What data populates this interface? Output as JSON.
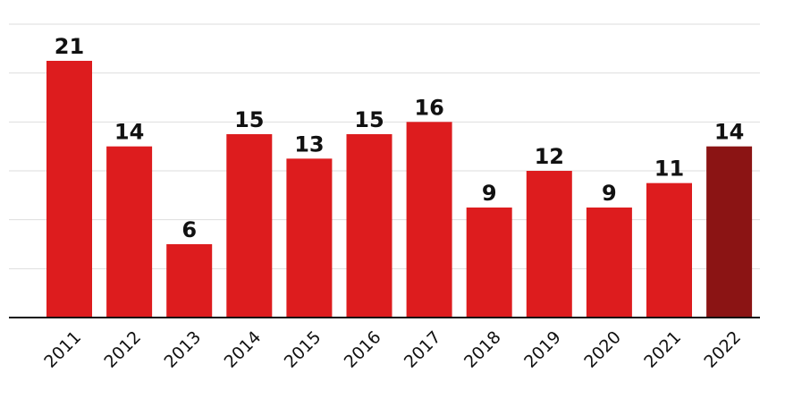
{
  "chart_data": {
    "type": "bar",
    "categories": [
      "2011",
      "2012",
      "2013",
      "2014",
      "2015",
      "2016",
      "2017",
      "2018",
      "2019",
      "2020",
      "2021",
      "2022"
    ],
    "values": [
      21,
      14,
      6,
      15,
      13,
      15,
      16,
      9,
      12,
      9,
      11,
      14
    ],
    "title": "",
    "xlabel": "",
    "ylabel": "",
    "ylim": [
      0,
      24
    ],
    "grid": true,
    "legend": "none",
    "colors": {
      "bar": "#dd1c1e",
      "highlight": "#8b1414",
      "highlight_index": 11
    }
  }
}
